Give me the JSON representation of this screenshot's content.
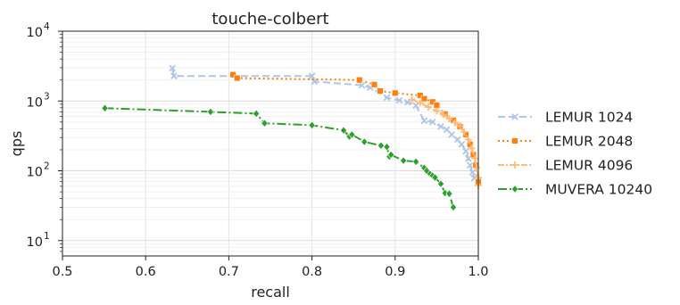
{
  "chart_data": {
    "type": "line",
    "title": "touche-colbert",
    "xlabel": "recall",
    "ylabel": "qps",
    "xlim": [
      0.5,
      1.0
    ],
    "ylim_log10": [
      0.78,
      4.0
    ],
    "yscale": "log",
    "grid": true,
    "legend_position": "outside-right",
    "x_ticks": [
      0.5,
      0.6,
      0.7,
      0.8,
      0.9,
      1.0
    ],
    "x_tick_labels": [
      "0.5",
      "0.6",
      "0.7",
      "0.8",
      "0.9",
      "1.0"
    ],
    "y_ticks_exp": [
      1,
      2,
      3,
      4
    ],
    "y_tick_labels": [
      "10",
      "10",
      "10",
      "10"
    ],
    "series": [
      {
        "name": "LEMUR 1024",
        "color": "#aec7e8",
        "dash": "8,4",
        "marker": "x",
        "points": [
          [
            0.632,
            2950
          ],
          [
            0.634,
            2280
          ],
          [
            0.8,
            2280
          ],
          [
            0.803,
            1900
          ],
          [
            0.86,
            1680
          ],
          [
            0.87,
            1560
          ],
          [
            0.89,
            1120
          ],
          [
            0.905,
            1020
          ],
          [
            0.915,
            960
          ],
          [
            0.925,
            860
          ],
          [
            0.935,
            520
          ],
          [
            0.945,
            500
          ],
          [
            0.955,
            430
          ],
          [
            0.962,
            390
          ],
          [
            0.968,
            330
          ],
          [
            0.975,
            280
          ],
          [
            0.98,
            240
          ],
          [
            0.985,
            190
          ],
          [
            0.988,
            150
          ],
          [
            0.99,
            120
          ],
          [
            0.993,
            95
          ],
          [
            0.995,
            78
          ]
        ]
      },
      {
        "name": "LEMUR 2048",
        "color": "#ff7f0e",
        "dash": "2,3",
        "marker": "square",
        "points": [
          [
            0.705,
            2380
          ],
          [
            0.71,
            2130
          ],
          [
            0.857,
            2000
          ],
          [
            0.875,
            1720
          ],
          [
            0.882,
            1390
          ],
          [
            0.9,
            1300
          ],
          [
            0.93,
            1200
          ],
          [
            0.935,
            1080
          ],
          [
            0.945,
            970
          ],
          [
            0.95,
            870
          ],
          [
            0.96,
            650
          ],
          [
            0.97,
            530
          ],
          [
            0.978,
            430
          ],
          [
            0.985,
            330
          ],
          [
            0.99,
            240
          ],
          [
            0.994,
            170
          ],
          [
            0.997,
            120
          ],
          [
            1.0,
            70
          ]
        ]
      },
      {
        "name": "LEMUR 4096",
        "color": "#ffbb78",
        "dash": "7,2,2,2",
        "marker": "plus",
        "points": [
          [
            0.92,
            1050
          ],
          [
            0.93,
            940
          ],
          [
            0.94,
            820
          ],
          [
            0.95,
            720
          ],
          [
            0.958,
            640
          ],
          [
            0.965,
            560
          ],
          [
            0.972,
            490
          ],
          [
            0.978,
            440
          ],
          [
            0.983,
            360
          ],
          [
            0.988,
            280
          ],
          [
            0.992,
            210
          ],
          [
            0.996,
            150
          ],
          [
            0.998,
            110
          ],
          [
            1.0,
            80
          ],
          [
            1.0,
            62
          ]
        ]
      },
      {
        "name": "MUVERA 10240",
        "color": "#2ca02c",
        "dash": "10,3,2,3",
        "marker": "diamond",
        "points": [
          [
            0.551,
            790
          ],
          [
            0.678,
            700
          ],
          [
            0.733,
            660
          ],
          [
            0.743,
            480
          ],
          [
            0.8,
            450
          ],
          [
            0.838,
            380
          ],
          [
            0.845,
            310
          ],
          [
            0.848,
            330
          ],
          [
            0.863,
            260
          ],
          [
            0.883,
            230
          ],
          [
            0.89,
            220
          ],
          [
            0.893,
            160
          ],
          [
            0.895,
            170
          ],
          [
            0.91,
            140
          ],
          [
            0.925,
            135
          ],
          [
            0.935,
            110
          ],
          [
            0.938,
            100
          ],
          [
            0.942,
            90
          ],
          [
            0.945,
            85
          ],
          [
            0.948,
            80
          ],
          [
            0.955,
            65
          ],
          [
            0.96,
            48
          ],
          [
            0.965,
            47
          ],
          [
            0.97,
            30
          ]
        ]
      }
    ]
  }
}
